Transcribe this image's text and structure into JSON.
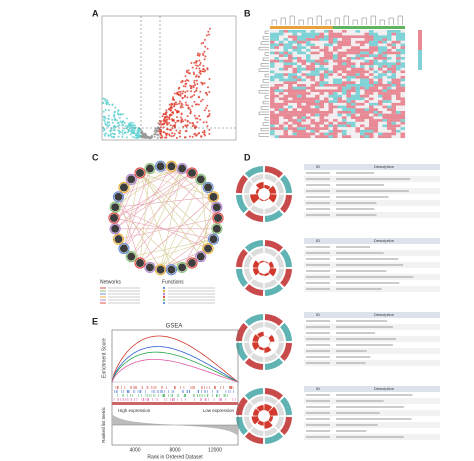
{
  "labels": [
    "A",
    "B",
    "C",
    "D",
    "E"
  ],
  "panel_c": {
    "legend_titles": [
      "Networks",
      "Functions"
    ]
  },
  "panel_d": {
    "tables": [
      {
        "headers": [
          "ID",
          "Description"
        ]
      },
      {
        "headers": [
          "ID",
          "Description"
        ]
      },
      {
        "headers": [
          "ID",
          "Description"
        ]
      },
      {
        "headers": [
          "ID",
          "Description"
        ]
      }
    ]
  },
  "panel_e": {
    "title": "GSEA",
    "y_label": "Enrichment Score",
    "y2_label": "Ranked list metric",
    "x_label": "Rank in Ordered Dataset",
    "high": "High expression",
    "low": "Low expression",
    "xticks": [
      "4000",
      "8000",
      "12000"
    ]
  }
}
